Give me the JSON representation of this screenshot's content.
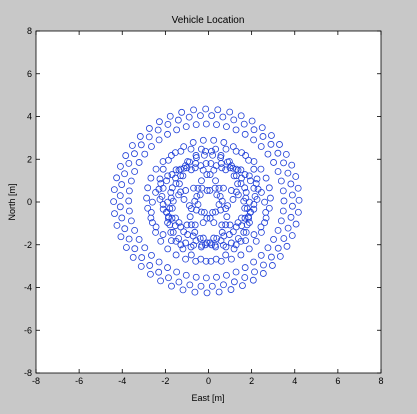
{
  "chart_data": {
    "type": "scatter",
    "title": "Vehicle Location",
    "xlabel": "East [m]",
    "ylabel": "North [m]",
    "xlim": [
      -8,
      8
    ],
    "ylim": [
      -8,
      8
    ],
    "xticks": [
      "-8",
      "-6",
      "-4",
      "-2",
      "0",
      "2",
      "4",
      "6",
      "8"
    ],
    "yticks": [
      "-8",
      "-6",
      "-4",
      "-2",
      "0",
      "2",
      "4",
      "6",
      "8"
    ],
    "grid": false,
    "legend": "none",
    "marker": "circle-open",
    "line": "none",
    "series_color": "#1f3fd8",
    "trajectory": {
      "description": "rosette trajectory of open-circle markers",
      "outer_radius": 4.2,
      "petals": 5,
      "petal_circle_radius": 1.35,
      "petal_center_radius": 0.85,
      "ring_radii": [
        3.6,
        4.0,
        4.3
      ]
    }
  }
}
